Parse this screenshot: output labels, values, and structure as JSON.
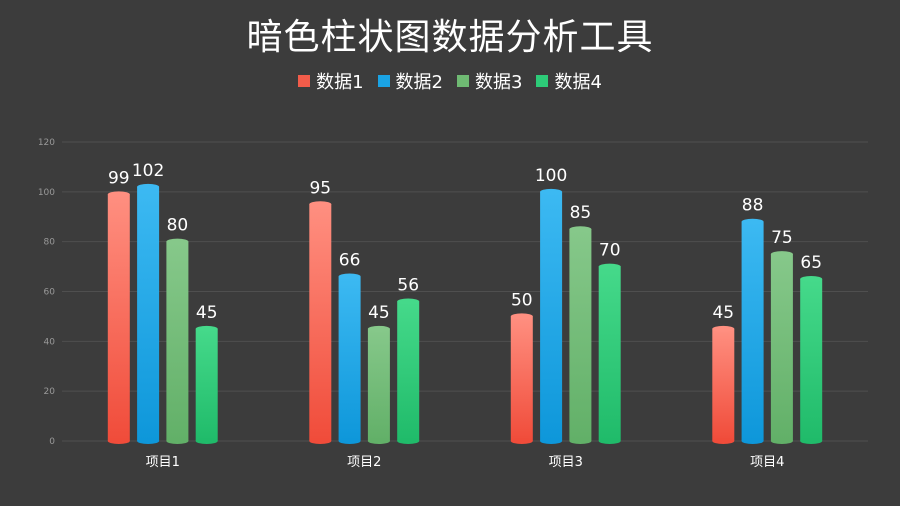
{
  "chart_data": {
    "type": "bar",
    "title": "暗色柱状图数据分析工具",
    "categories": [
      "项目1",
      "项目2",
      "项目3",
      "项目4"
    ],
    "series": [
      {
        "name": "数据1",
        "values": [
          99,
          95,
          50,
          45
        ],
        "color": "#f25c4a",
        "color_light": "#ff8f80",
        "color_dark": "#f04c3a"
      },
      {
        "name": "数据2",
        "values": [
          102,
          66,
          100,
          88
        ],
        "color": "#1aa3e4",
        "color_light": "#3cb9f2",
        "color_dark": "#0e97da"
      },
      {
        "name": "数据3",
        "values": [
          80,
          45,
          85,
          75
        ],
        "color": "#6fba73",
        "color_light": "#86c88a",
        "color_dark": "#62b068"
      },
      {
        "name": "数据4",
        "values": [
          45,
          56,
          70,
          65
        ],
        "color": "#2dcb78",
        "color_light": "#45d98a",
        "color_dark": "#20bb6a"
      }
    ],
    "ylim": [
      0,
      120
    ],
    "yticks": [
      0,
      20,
      40,
      60,
      80,
      100,
      120
    ],
    "grid": true,
    "legend": "top-center",
    "colors": {
      "background": "#3c3c3c",
      "grid": "#4f4f4f",
      "text": "#ffffff",
      "axis_text": "#999999"
    }
  }
}
